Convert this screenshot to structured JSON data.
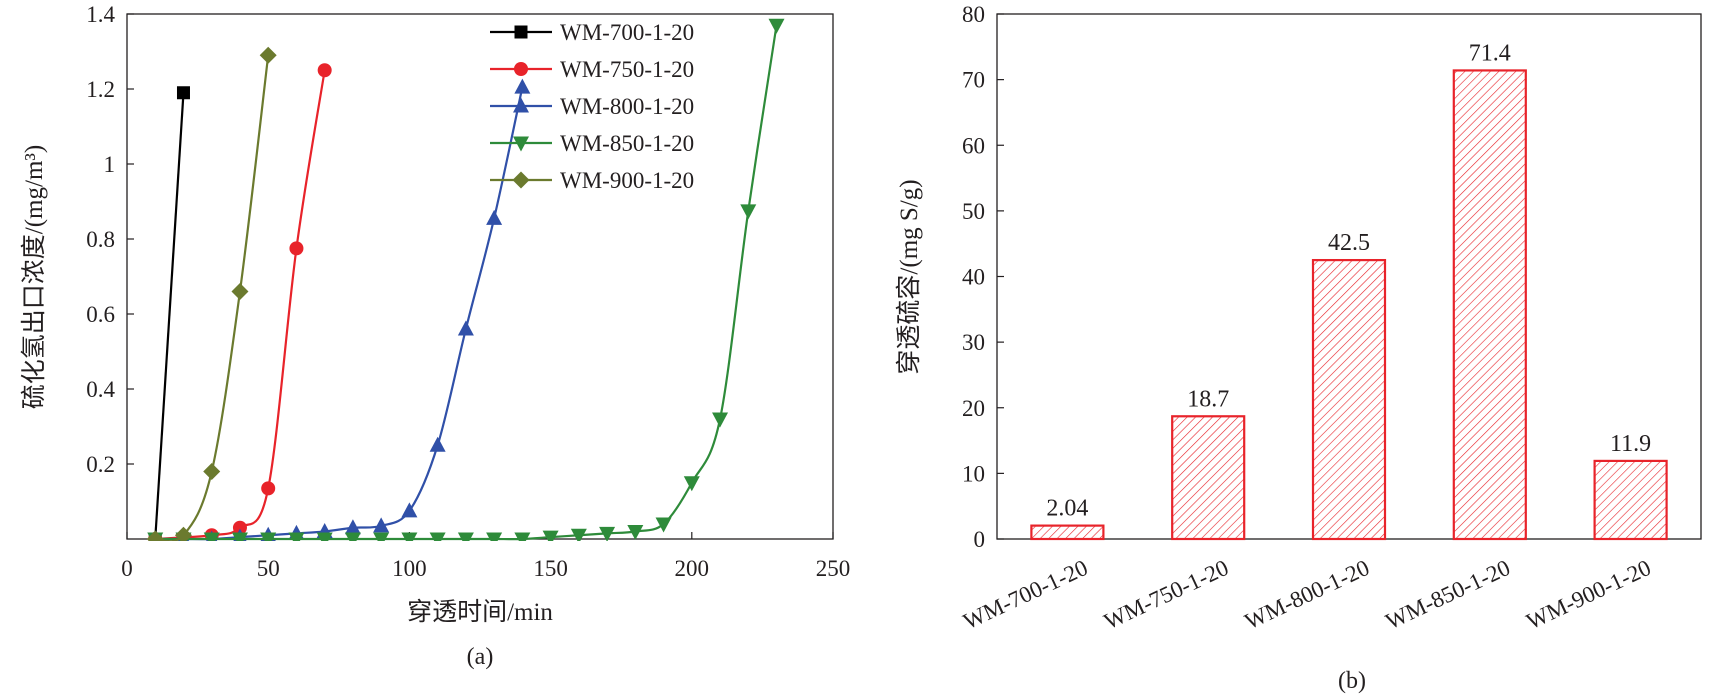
{
  "chart_data": [
    {
      "type": "line",
      "xlabel": "穿透时间/min",
      "ylabel": "硫化氢出口浓度/(mg/m³)",
      "panel_label": "(a)",
      "xlim": [
        0,
        250
      ],
      "ylim": [
        0,
        1.4
      ],
      "xticks": [
        0,
        50,
        100,
        150,
        200,
        250
      ],
      "yticks": [
        0.2,
        0.4,
        0.6,
        0.8,
        1.0,
        1.2,
        1.4
      ],
      "legend_position": "top-right",
      "series": [
        {
          "name": "WM-700-1-20",
          "color": "#000000",
          "marker": "square",
          "x": [
            10,
            20
          ],
          "y": [
            0.0,
            1.19
          ]
        },
        {
          "name": "WM-750-1-20",
          "color": "#e8232a",
          "marker": "circle",
          "x": [
            10,
            30,
            40,
            50,
            60,
            70
          ],
          "y": [
            0.0,
            0.01,
            0.03,
            0.135,
            0.775,
            1.25
          ]
        },
        {
          "name": "WM-800-1-20",
          "color": "#3050a8",
          "marker": "triangle-up",
          "x": [
            10,
            20,
            30,
            40,
            50,
            60,
            70,
            80,
            90,
            100,
            110,
            120,
            130,
            140
          ],
          "y": [
            0.0,
            0.0,
            0.0,
            0.005,
            0.01,
            0.015,
            0.02,
            0.03,
            0.035,
            0.075,
            0.25,
            0.56,
            0.855,
            1.205
          ]
        },
        {
          "name": "WM-850-1-20",
          "color": "#2e8b3a",
          "marker": "triangle-down",
          "x": [
            10,
            20,
            30,
            40,
            50,
            60,
            70,
            80,
            90,
            100,
            110,
            120,
            130,
            140,
            150,
            160,
            170,
            180,
            190,
            200,
            210,
            220,
            230
          ],
          "y": [
            0.0,
            0.0,
            0.0,
            0.0,
            0.0,
            0.0,
            0.0,
            0.0,
            0.0,
            0.0,
            0.0,
            0.0,
            0.0,
            0.0,
            0.005,
            0.01,
            0.015,
            0.02,
            0.04,
            0.15,
            0.32,
            0.875,
            1.37
          ]
        },
        {
          "name": "WM-900-1-20",
          "color": "#6b7a2e",
          "marker": "diamond",
          "x": [
            10,
            20,
            30,
            40,
            50
          ],
          "y": [
            0.0,
            0.01,
            0.18,
            0.66,
            1.29
          ]
        }
      ]
    },
    {
      "type": "bar",
      "ylabel": "穿透硫容/(mg S/g)",
      "panel_label": "(b)",
      "ylim": [
        0,
        80
      ],
      "yticks": [
        0,
        10,
        20,
        30,
        40,
        50,
        60,
        70,
        80
      ],
      "categories": [
        "WM-700-1-20",
        "WM-750-1-20",
        "WM-800-1-20",
        "WM-850-1-20",
        "WM-900-1-20"
      ],
      "values": [
        2.04,
        18.7,
        42.5,
        71.4,
        11.9
      ],
      "value_labels": [
        "2.04",
        "18.7",
        "42.5",
        "71.4",
        "11.9"
      ],
      "bar_color": "#e8232a",
      "fill": "hatched"
    }
  ]
}
